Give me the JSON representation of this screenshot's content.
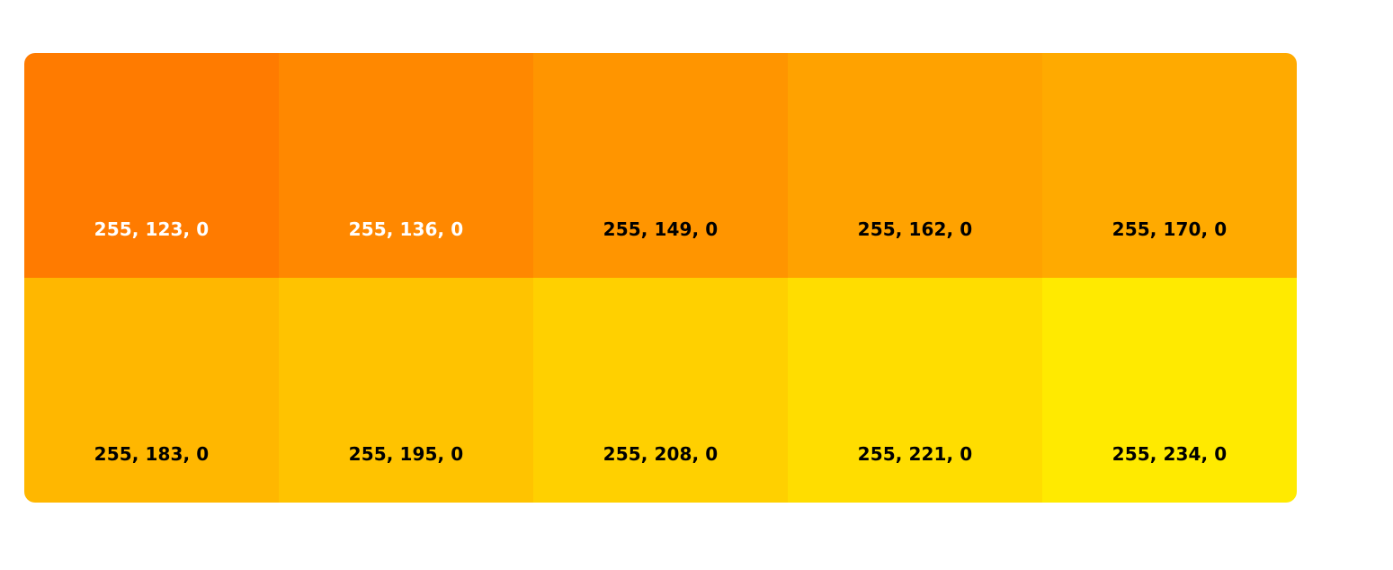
{
  "palette": {
    "swatches": [
      {
        "label": "255, 123, 0",
        "color": "#ff7b00",
        "text_color": "#ffffff"
      },
      {
        "label": "255, 136, 0",
        "color": "#ff8800",
        "text_color": "#ffffff"
      },
      {
        "label": "255, 149, 0",
        "color": "#ff9500",
        "text_color": "#000000"
      },
      {
        "label": "255, 162, 0",
        "color": "#ffa200",
        "text_color": "#000000"
      },
      {
        "label": "255, 170, 0",
        "color": "#ffaa00",
        "text_color": "#000000"
      },
      {
        "label": "255, 183, 0",
        "color": "#ffb700",
        "text_color": "#000000"
      },
      {
        "label": "255, 195, 0",
        "color": "#ffc300",
        "text_color": "#000000"
      },
      {
        "label": "255, 208, 0",
        "color": "#ffd000",
        "text_color": "#000000"
      },
      {
        "label": "255, 221, 0",
        "color": "#ffdd00",
        "text_color": "#000000"
      },
      {
        "label": "255, 234, 0",
        "color": "#ffea00",
        "text_color": "#000000"
      }
    ]
  }
}
